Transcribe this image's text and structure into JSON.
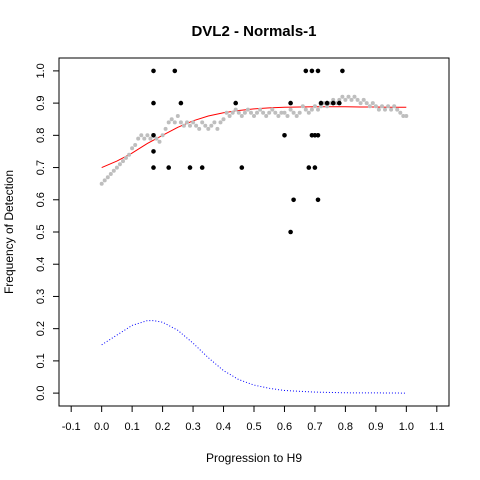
{
  "chart_data": {
    "type": "scatter",
    "title": "DVL2 - Normals-1",
    "xlabel": "Progression to H9",
    "ylabel": "Frequency of Detection",
    "xlim": [
      -0.14,
      1.14
    ],
    "ylim": [
      -0.04,
      1.04
    ],
    "x_ticks": [
      -0.1,
      0.0,
      0.1,
      0.2,
      0.3,
      0.4,
      0.5,
      0.6,
      0.7,
      0.8,
      0.9,
      1.0,
      1.1
    ],
    "x_tick_labels": [
      "-0.1",
      "0.0",
      "0.1",
      "0.2",
      "0.3",
      "0.4",
      "0.5",
      "0.6",
      "0.7",
      "0.8",
      "0.9",
      "1.0",
      "1.1"
    ],
    "y_ticks": [
      0.0,
      0.1,
      0.2,
      0.3,
      0.4,
      0.5,
      0.6,
      0.7,
      0.8,
      0.9,
      1.0
    ],
    "y_tick_labels": [
      "0.0",
      "0.1",
      "0.2",
      "0.3",
      "0.4",
      "0.5",
      "0.6",
      "0.7",
      "0.8",
      "0.9",
      "1.0"
    ],
    "legend": "none",
    "grid": false,
    "series": [
      {
        "kind": "points",
        "color": "#bebebe",
        "x": [
          0.0,
          0.01,
          0.02,
          0.03,
          0.04,
          0.05,
          0.06,
          0.07,
          0.08,
          0.09,
          0.1,
          0.11,
          0.12,
          0.13,
          0.14,
          0.15,
          0.16,
          0.17,
          0.18,
          0.19,
          0.2,
          0.21,
          0.22,
          0.23,
          0.24,
          0.25,
          0.26,
          0.27,
          0.28,
          0.29,
          0.3,
          0.31,
          0.32,
          0.33,
          0.34,
          0.35,
          0.36,
          0.37,
          0.38,
          0.39,
          0.4,
          0.41,
          0.42,
          0.43,
          0.44,
          0.45,
          0.46,
          0.47,
          0.48,
          0.49,
          0.5,
          0.51,
          0.52,
          0.53,
          0.54,
          0.55,
          0.56,
          0.57,
          0.58,
          0.59,
          0.6,
          0.61,
          0.62,
          0.63,
          0.64,
          0.65,
          0.66,
          0.67,
          0.68,
          0.69,
          0.7,
          0.71,
          0.72,
          0.73,
          0.74,
          0.75,
          0.76,
          0.77,
          0.78,
          0.79,
          0.8,
          0.81,
          0.82,
          0.83,
          0.84,
          0.85,
          0.86,
          0.87,
          0.88,
          0.89,
          0.9,
          0.91,
          0.92,
          0.93,
          0.94,
          0.95,
          0.96,
          0.97,
          0.98,
          0.99,
          1.0
        ],
        "y": [
          0.65,
          0.66,
          0.67,
          0.68,
          0.69,
          0.7,
          0.71,
          0.72,
          0.73,
          0.74,
          0.76,
          0.77,
          0.79,
          0.8,
          0.79,
          0.8,
          0.79,
          0.8,
          0.79,
          0.78,
          0.8,
          0.82,
          0.84,
          0.85,
          0.84,
          0.86,
          0.84,
          0.83,
          0.84,
          0.83,
          0.84,
          0.83,
          0.82,
          0.84,
          0.83,
          0.82,
          0.83,
          0.84,
          0.82,
          0.84,
          0.85,
          0.87,
          0.86,
          0.87,
          0.88,
          0.87,
          0.86,
          0.87,
          0.88,
          0.87,
          0.86,
          0.87,
          0.88,
          0.87,
          0.86,
          0.87,
          0.88,
          0.87,
          0.86,
          0.87,
          0.87,
          0.86,
          0.88,
          0.87,
          0.86,
          0.87,
          0.89,
          0.88,
          0.87,
          0.88,
          0.89,
          0.88,
          0.89,
          0.9,
          0.89,
          0.9,
          0.91,
          0.9,
          0.91,
          0.92,
          0.91,
          0.92,
          0.91,
          0.92,
          0.91,
          0.9,
          0.91,
          0.9,
          0.89,
          0.9,
          0.89,
          0.88,
          0.89,
          0.88,
          0.89,
          0.88,
          0.89,
          0.88,
          0.87,
          0.86,
          0.86
        ]
      },
      {
        "kind": "points",
        "color": "#000000",
        "x": [
          0.17,
          0.17,
          0.17,
          0.17,
          0.17,
          0.22,
          0.24,
          0.26,
          0.29,
          0.33,
          0.44,
          0.46,
          0.6,
          0.62,
          0.62,
          0.63,
          0.67,
          0.68,
          0.69,
          0.69,
          0.7,
          0.7,
          0.71,
          0.71,
          0.71,
          0.72,
          0.74,
          0.76,
          0.78,
          0.79
        ],
        "y": [
          1.0,
          0.9,
          0.8,
          0.75,
          0.7,
          0.7,
          1.0,
          0.9,
          0.7,
          0.7,
          0.9,
          0.7,
          0.8,
          0.9,
          0.5,
          0.6,
          1.0,
          0.7,
          1.0,
          0.8,
          0.8,
          0.7,
          1.0,
          0.8,
          0.6,
          0.9,
          0.9,
          0.9,
          0.9,
          1.0
        ]
      },
      {
        "kind": "line",
        "color": "#ff0000",
        "style": "solid",
        "x": [
          0.0,
          0.05,
          0.1,
          0.15,
          0.2,
          0.25,
          0.3,
          0.35,
          0.4,
          0.45,
          0.5,
          0.55,
          0.6,
          0.65,
          0.7,
          0.75,
          0.8,
          0.85,
          0.9,
          0.95,
          1.0
        ],
        "y": [
          0.7,
          0.72,
          0.745,
          0.775,
          0.8,
          0.825,
          0.845,
          0.86,
          0.87,
          0.877,
          0.882,
          0.885,
          0.887,
          0.888,
          0.889,
          0.889,
          0.889,
          0.888,
          0.888,
          0.887,
          0.887
        ]
      },
      {
        "kind": "line",
        "color": "#0000ff",
        "style": "dotted",
        "x": [
          0.0,
          0.05,
          0.1,
          0.15,
          0.17,
          0.2,
          0.25,
          0.3,
          0.35,
          0.4,
          0.45,
          0.5,
          0.55,
          0.6,
          0.7,
          0.8,
          0.9,
          1.0
        ],
        "y": [
          0.15,
          0.18,
          0.21,
          0.225,
          0.225,
          0.22,
          0.195,
          0.155,
          0.11,
          0.07,
          0.042,
          0.025,
          0.015,
          0.008,
          0.003,
          0.001,
          0.0005,
          0.0
        ]
      }
    ]
  }
}
